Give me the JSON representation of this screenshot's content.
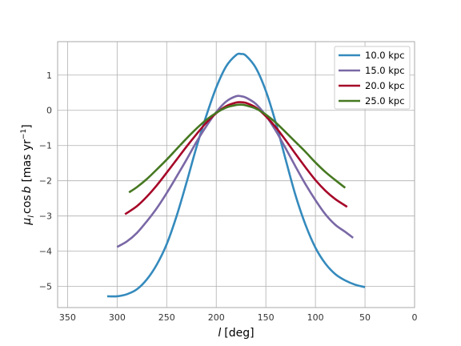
{
  "chart_data": {
    "type": "line",
    "xlabel_var": "l",
    "xlabel_unit": "[deg]",
    "ylabel_text": "μ",
    "ylabel_sub": "l",
    "ylabel_mid": "cos",
    "ylabel_b": "b",
    "ylabel_unit1": "[mas yr",
    "ylabel_sup": "−1",
    "ylabel_close": "]",
    "xlim": [
      360,
      0
    ],
    "ylim": [
      -5.6,
      1.95
    ],
    "x_reversed": true,
    "grid": true,
    "legend_position": "top-right",
    "xticks": [
      {
        "value": 350,
        "label": "350"
      },
      {
        "value": 300,
        "label": "300"
      },
      {
        "value": 250,
        "label": "250"
      },
      {
        "value": 200,
        "label": "200"
      },
      {
        "value": 150,
        "label": "150"
      },
      {
        "value": 100,
        "label": "100"
      },
      {
        "value": 50,
        "label": "50"
      },
      {
        "value": 0,
        "label": "0"
      }
    ],
    "yticks": [
      {
        "value": 1,
        "label": "1"
      },
      {
        "value": 0,
        "label": "0"
      },
      {
        "value": -1,
        "label": "−1"
      },
      {
        "value": -2,
        "label": "−2"
      },
      {
        "value": -3,
        "label": "−3"
      },
      {
        "value": -4,
        "label": "−4"
      },
      {
        "value": -5,
        "label": "−5"
      }
    ],
    "series": [
      {
        "name": "10.0 kpc",
        "color": "#348ABD",
        "x": [
          310,
          300,
          290,
          280,
          270,
          260,
          250,
          240,
          230,
          220,
          210,
          200,
          190,
          180,
          175,
          170,
          160,
          150,
          140,
          130,
          120,
          110,
          100,
          90,
          80,
          70,
          60,
          50
        ],
        "y": [
          -5.28,
          -5.28,
          -5.22,
          -5.08,
          -4.8,
          -4.38,
          -3.8,
          -3.0,
          -2.05,
          -1.05,
          -0.15,
          0.65,
          1.25,
          1.57,
          1.6,
          1.55,
          1.2,
          0.55,
          -0.35,
          -1.4,
          -2.42,
          -3.25,
          -3.9,
          -4.35,
          -4.65,
          -4.83,
          -4.95,
          -5.02
        ]
      },
      {
        "name": "15.0 kpc",
        "color": "#7A68A6",
        "x": [
          300,
          290,
          280,
          270,
          260,
          250,
          240,
          230,
          220,
          210,
          200,
          190,
          180,
          175,
          170,
          160,
          150,
          140,
          130,
          120,
          110,
          100,
          90,
          80,
          70,
          62
        ],
        "y": [
          -3.88,
          -3.72,
          -3.48,
          -3.15,
          -2.78,
          -2.35,
          -1.88,
          -1.4,
          -0.9,
          -0.45,
          -0.05,
          0.25,
          0.4,
          0.4,
          0.36,
          0.18,
          -0.15,
          -0.58,
          -1.08,
          -1.6,
          -2.1,
          -2.55,
          -2.95,
          -3.25,
          -3.45,
          -3.62
        ]
      },
      {
        "name": "20.0 kpc",
        "color": "#A60628",
        "x": [
          292,
          280,
          270,
          260,
          250,
          240,
          230,
          220,
          210,
          200,
          190,
          180,
          175,
          170,
          160,
          150,
          140,
          130,
          120,
          110,
          100,
          90,
          80,
          68
        ],
        "y": [
          -2.95,
          -2.72,
          -2.45,
          -2.13,
          -1.77,
          -1.4,
          -1.03,
          -0.68,
          -0.35,
          -0.08,
          0.12,
          0.22,
          0.23,
          0.21,
          0.08,
          -0.17,
          -0.48,
          -0.85,
          -1.24,
          -1.62,
          -1.98,
          -2.28,
          -2.52,
          -2.74
        ]
      },
      {
        "name": "25.0 kpc",
        "color": "#467821",
        "x": [
          288,
          280,
          270,
          260,
          250,
          240,
          230,
          220,
          210,
          200,
          190,
          180,
          175,
          170,
          160,
          150,
          140,
          130,
          120,
          110,
          100,
          90,
          80,
          70
        ],
        "y": [
          -2.33,
          -2.18,
          -1.95,
          -1.68,
          -1.4,
          -1.1,
          -0.8,
          -0.52,
          -0.27,
          -0.07,
          0.08,
          0.15,
          0.16,
          0.14,
          0.05,
          -0.12,
          -0.35,
          -0.62,
          -0.9,
          -1.18,
          -1.48,
          -1.75,
          -1.98,
          -2.2
        ]
      }
    ]
  }
}
